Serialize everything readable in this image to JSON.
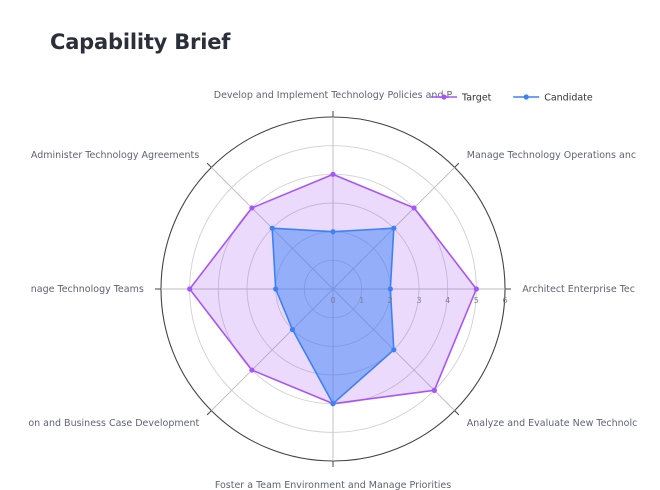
{
  "page": {
    "title": "Capability Brief"
  },
  "chart_data": {
    "type": "radar",
    "axes": [
      "Develop and Implement Technology Policies and P",
      "Manage Technology Operations anc",
      "Architect Enterprise Tec",
      "Analyze and Evaluate New Technolc",
      "Foster a Team Environment and Manage Priorities",
      "on and Business Case Development",
      "nage Technology Teams",
      "Administer Technology Agreements"
    ],
    "r_ticks": [
      0,
      1,
      2,
      3,
      4,
      5,
      6
    ],
    "r_range": [
      0,
      6
    ],
    "legend_position": "top-right",
    "series": [
      {
        "name": "Target",
        "values": [
          4,
          4,
          5,
          5,
          4,
          4,
          5,
          4
        ],
        "color": "#a855f7"
      },
      {
        "name": "Candidate",
        "values": [
          2,
          3,
          2,
          3,
          4,
          2,
          2,
          3
        ],
        "color": "#3b82f6"
      }
    ]
  }
}
